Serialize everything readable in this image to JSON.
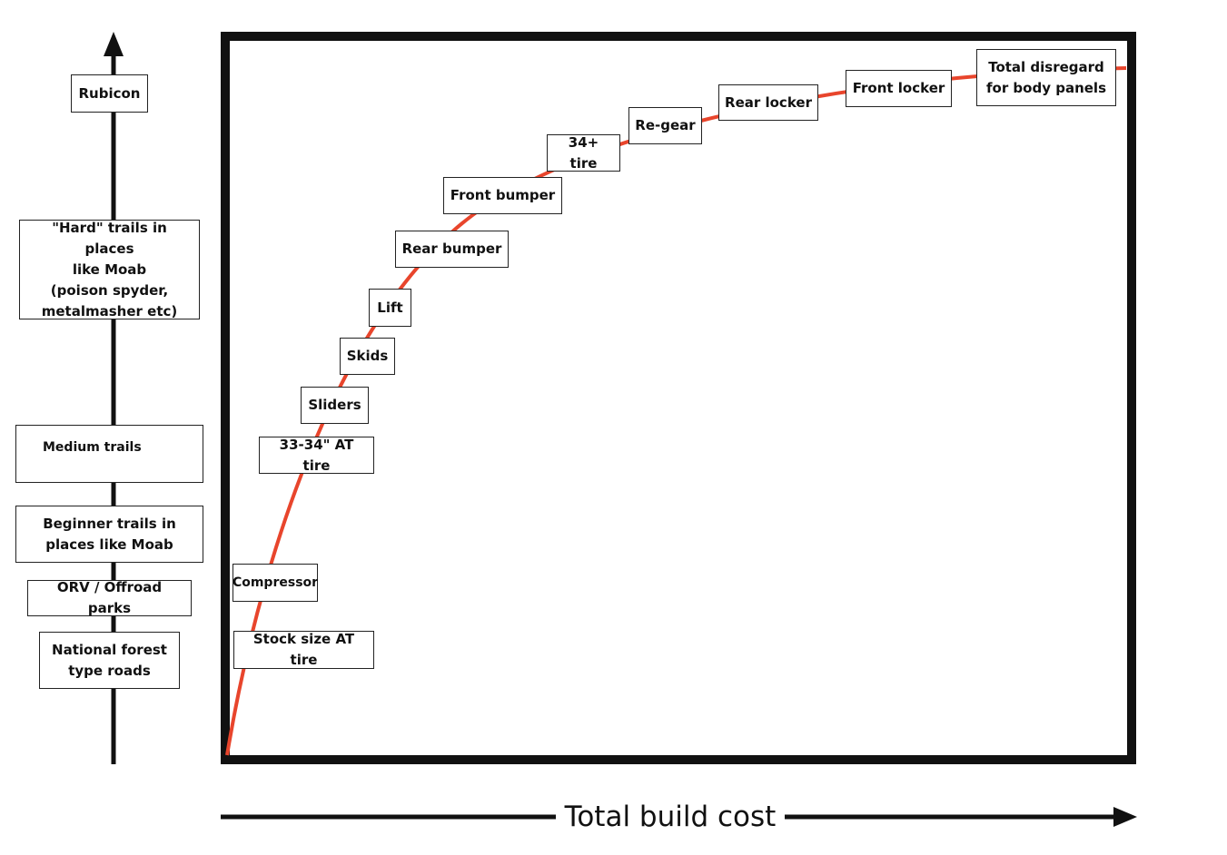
{
  "terrain_scale": {
    "levels": [
      "National forest\ntype roads",
      "ORV / Offroad parks",
      "Beginner trails in\nplaces like Moab",
      "Medium trails",
      "\"Hard\" trails in places\nlike Moab\n(poison spyder,\nmetalmasher etc)",
      "Rubicon"
    ]
  },
  "build_steps": [
    "Stock size AT tire",
    "Compressor",
    "33-34\" AT tire",
    "Sliders",
    "Skids",
    "Lift",
    "Rear bumper",
    "Front bumper",
    "34+ tire",
    "Re-gear",
    "Rear locker",
    "Front locker",
    "Total disregard\nfor body panels"
  ],
  "x_axis": {
    "label": "Total build cost"
  },
  "colors": {
    "curve": "#e8452c",
    "ink": "#111111"
  }
}
